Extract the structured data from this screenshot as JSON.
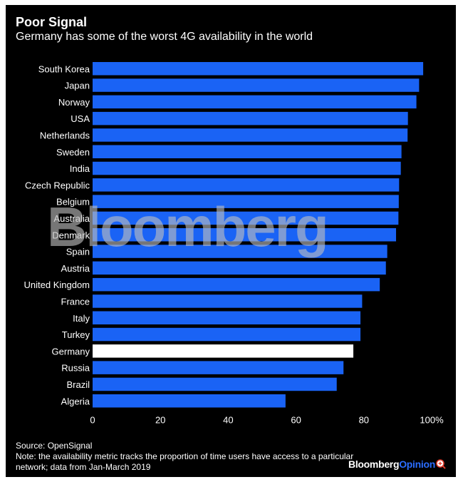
{
  "colors": {
    "background": "#000000",
    "bar": "#1a63f5",
    "highlight_bar": "#ffffff",
    "text": "#ffffff",
    "brand_accent": "#2b6dff"
  },
  "header": {
    "title": "Poor Signal",
    "subtitle": "Germany has some of the worst 4G availability in the world"
  },
  "chart_data": {
    "type": "bar",
    "orientation": "horizontal",
    "title": "Poor Signal",
    "subtitle": "Germany has some of the worst 4G availability in the world",
    "xlabel": "",
    "ylabel": "",
    "xlim": [
      0,
      100
    ],
    "ticks": [
      {
        "value": 0,
        "label": "0"
      },
      {
        "value": 20,
        "label": "20"
      },
      {
        "value": 40,
        "label": "40"
      },
      {
        "value": 60,
        "label": "60"
      },
      {
        "value": 80,
        "label": "80"
      },
      {
        "value": 100,
        "label": "100%"
      }
    ],
    "highlight": "Germany",
    "categories": [
      "South Korea",
      "Japan",
      "Norway",
      "USA",
      "Netherlands",
      "Sweden",
      "India",
      "Czech Republic",
      "Belgium",
      "Australia",
      "Denmark",
      "Spain",
      "Austria",
      "United Kingdom",
      "France",
      "Italy",
      "Turkey",
      "Germany",
      "Russia",
      "Brazil",
      "Algeria"
    ],
    "values": [
      97.5,
      96.3,
      95.5,
      93.0,
      92.9,
      91.1,
      90.9,
      90.4,
      90.3,
      90.2,
      89.5,
      86.9,
      86.5,
      84.7,
      79.5,
      79.0,
      79.0,
      76.9,
      74.0,
      72.0,
      56.9
    ]
  },
  "watermark": {
    "text": "Bloomberg"
  },
  "footer": {
    "source": "Source: OpenSignal",
    "note": "Note: the availability metric tracks the proportion of time users have access to a particular network; data from Jan-March 2019",
    "brand_part1": "Bloomberg",
    "brand_part2": "Opinion",
    "zoom_icon": "zoom-in-icon"
  }
}
